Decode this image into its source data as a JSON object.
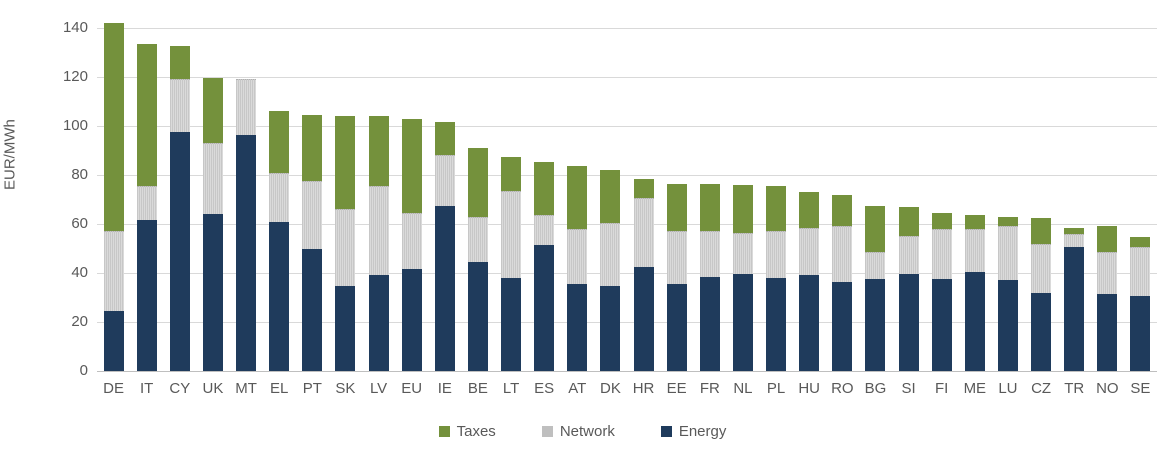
{
  "chart_data": {
    "type": "bar",
    "stacked": true,
    "title": "",
    "ylabel": "EUR/MWh",
    "xlabel": "",
    "ylim": [
      0,
      140
    ],
    "ytick_step": 20,
    "yticks": [
      0,
      20,
      40,
      60,
      80,
      100,
      120,
      140
    ],
    "grid": true,
    "legend_position": "bottom",
    "legend_order": [
      "Taxes",
      "Network",
      "Energy"
    ],
    "categories": [
      "DE",
      "IT",
      "CY",
      "UK",
      "MT",
      "EL",
      "PT",
      "SK",
      "LV",
      "EU",
      "IE",
      "BE",
      "LT",
      "ES",
      "AT",
      "DK",
      "HR",
      "EE",
      "FR",
      "NL",
      "PL",
      "HU",
      "RO",
      "BG",
      "SI",
      "FI",
      "ME",
      "LU",
      "CZ",
      "TR",
      "NO",
      "SE"
    ],
    "series": [
      {
        "name": "Energy",
        "color": "#1f3b5c",
        "values": [
          24.5,
          61.5,
          97.5,
          64,
          96.5,
          61,
          50,
          34.5,
          39,
          41.5,
          67.5,
          44.5,
          38,
          51.5,
          35.5,
          34.5,
          42.5,
          35.5,
          38.5,
          39.5,
          38,
          39,
          36.5,
          37.5,
          39.5,
          37.5,
          40.5,
          37,
          32,
          50.5,
          31.5,
          30.5
        ]
      },
      {
        "name": "Network",
        "color": "#c9c9c9",
        "values": [
          32.5,
          14,
          21.5,
          29,
          22.5,
          20,
          27.5,
          31.5,
          36.5,
          23,
          20.5,
          18.5,
          35.5,
          12,
          22.5,
          26,
          28,
          21.5,
          18.5,
          17,
          19,
          19.5,
          22.5,
          11,
          15.5,
          20.5,
          17.5,
          22,
          20,
          5.5,
          17,
          20
        ]
      },
      {
        "name": "Taxes",
        "color": "#74913c",
        "values": [
          85,
          58,
          13.5,
          26.5,
          0,
          25,
          27,
          38,
          28.5,
          38.5,
          13.5,
          28,
          14,
          22,
          25.5,
          21.5,
          8,
          19.5,
          19.5,
          19.5,
          18.5,
          14.5,
          13,
          19,
          12,
          6.5,
          5.5,
          4,
          10.5,
          2.5,
          10.5,
          4
        ]
      }
    ],
    "totals": [
      142,
      133.5,
      132.5,
      119.5,
      119,
      106,
      104.5,
      104,
      104,
      103,
      101.5,
      91,
      87.5,
      85.5,
      83.5,
      82,
      78.5,
      76.5,
      76.5,
      76,
      75.5,
      73,
      72,
      67.5,
      67,
      64.5,
      63.5,
      63,
      62.5,
      58.5,
      59,
      54.5
    ]
  },
  "colors": {
    "gridline": "#d9d9d9",
    "axis_baseline": "#bfbfbf",
    "text": "#595959",
    "background": "#ffffff"
  }
}
